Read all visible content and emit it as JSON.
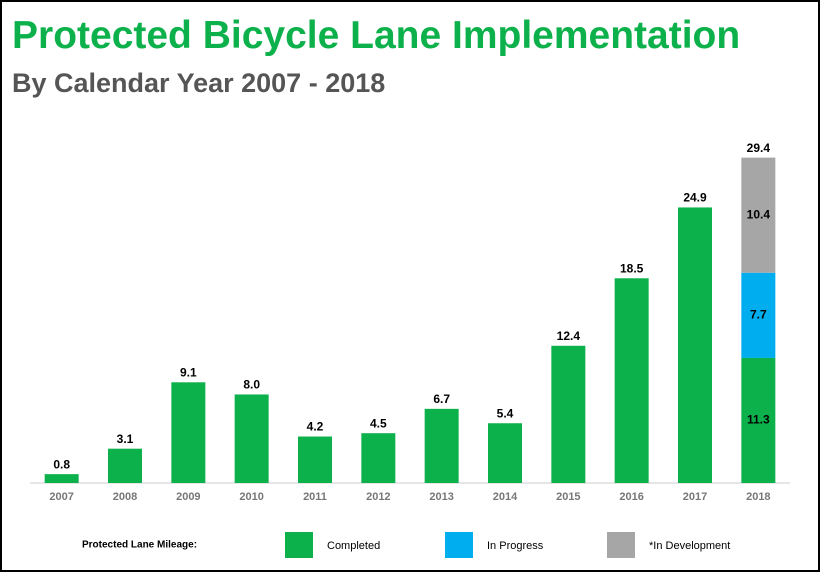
{
  "chart_data": {
    "type": "stacked_bar",
    "title": "Protected Bicycle Lane Implementation",
    "subtitle": "By Calendar Year 2007 - 2018",
    "categories": [
      "2007",
      "2008",
      "2009",
      "2010",
      "2011",
      "2012",
      "2013",
      "2014",
      "2015",
      "2016",
      "2017",
      "2018"
    ],
    "series": [
      {
        "name": "Completed",
        "color": "#0db14b",
        "values": [
          0.8,
          3.1,
          9.1,
          8.0,
          4.2,
          4.5,
          6.7,
          5.4,
          12.4,
          18.5,
          24.9,
          11.3
        ],
        "value_labels": [
          "0.8",
          "3.1",
          "9.1",
          "8.0",
          "4.2",
          "4.5",
          "6.7",
          "5.4",
          "12.4",
          "18.5",
          "24.9",
          "11.3"
        ]
      },
      {
        "name": "In Progress",
        "color": "#00aeef",
        "values": [
          null,
          null,
          null,
          null,
          null,
          null,
          null,
          null,
          null,
          null,
          null,
          7.7
        ]
      },
      {
        "name": "*In Development",
        "color": "#a6a6a6",
        "values": [
          null,
          null,
          null,
          null,
          null,
          null,
          null,
          null,
          null,
          null,
          null,
          10.4
        ]
      }
    ],
    "stack_totals": [
      null,
      null,
      null,
      null,
      null,
      null,
      null,
      null,
      null,
      null,
      null,
      29.4
    ],
    "legend_title": "Protected Lane Mileage:",
    "ylim": [
      0,
      30
    ],
    "grid": false
  }
}
